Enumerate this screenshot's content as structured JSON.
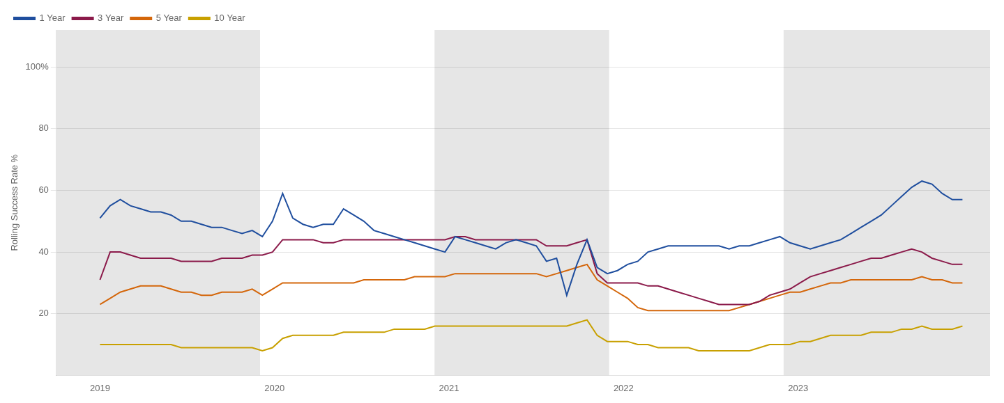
{
  "chart_data": {
    "type": "line",
    "y_label": "Rolling Success Rate %",
    "x": [
      2019.0,
      2019.05814,
      2019.116279,
      2019.174419,
      2019.232558,
      2019.290698,
      2019.348837,
      2019.406977,
      2019.465116,
      2019.523256,
      2019.581395,
      2019.639535,
      2019.697674,
      2019.755814,
      2019.813953,
      2019.872093,
      2019.930233,
      2019.988372,
      2020.046512,
      2020.104651,
      2020.162791,
      2020.22093,
      2020.27907,
      2020.337209,
      2020.395349,
      2020.453488,
      2020.511628,
      2020.569767,
      2020.627907,
      2020.686047,
      2020.744186,
      2020.802326,
      2020.860465,
      2020.918605,
      2020.976744,
      2021.034884,
      2021.093023,
      2021.151163,
      2021.209302,
      2021.267442,
      2021.325581,
      2021.383721,
      2021.44186,
      2021.5,
      2021.55814,
      2021.616279,
      2021.674419,
      2021.732558,
      2021.790698,
      2021.848837,
      2021.906977,
      2021.965116,
      2022.023256,
      2022.081395,
      2022.139535,
      2022.197674,
      2022.255814,
      2022.313953,
      2022.372093,
      2022.430233,
      2022.488372,
      2022.546512,
      2022.604651,
      2022.662791,
      2022.72093,
      2022.77907,
      2022.837209,
      2022.895349,
      2022.953488,
      2023.011628,
      2023.069767,
      2023.127907,
      2023.186047,
      2023.244186,
      2023.302326,
      2023.360465,
      2023.418605,
      2023.476744,
      2023.534884,
      2023.593023,
      2023.651163,
      2023.709302,
      2023.767442,
      2023.825581,
      2023.883721,
      2023.94186
    ],
    "series": [
      {
        "name": "1 Year",
        "color": "#1f4e9e",
        "values": [
          51,
          55,
          57,
          55,
          54,
          53,
          53,
          52,
          50,
          50,
          49,
          48,
          48,
          47,
          46,
          47,
          45,
          50,
          59,
          51,
          49,
          48,
          49,
          49,
          54,
          52,
          50,
          47,
          46,
          45,
          44,
          43,
          42,
          41,
          40,
          45,
          44,
          43,
          42,
          41,
          43,
          44,
          43,
          42,
          37,
          38,
          26,
          36,
          44,
          35,
          33,
          34,
          36,
          37,
          40,
          41,
          42,
          42,
          42,
          42,
          42,
          42,
          41,
          42,
          42,
          43,
          44,
          45,
          43,
          42,
          41,
          42,
          43,
          44,
          46,
          48,
          50,
          52,
          55,
          58,
          61,
          63,
          62,
          59,
          57,
          57
        ]
      },
      {
        "name": "3 Year",
        "color": "#8b1a4a",
        "values": [
          31,
          40,
          40,
          39,
          38,
          38,
          38,
          38,
          37,
          37,
          37,
          37,
          38,
          38,
          38,
          39,
          39,
          40,
          44,
          44,
          44,
          44,
          43,
          43,
          44,
          44,
          44,
          44,
          44,
          44,
          44,
          44,
          44,
          44,
          44,
          45,
          45,
          44,
          44,
          44,
          44,
          44,
          44,
          44,
          42,
          42,
          42,
          43,
          44,
          33,
          30,
          30,
          30,
          30,
          29,
          29,
          28,
          27,
          26,
          25,
          24,
          23,
          23,
          23,
          23,
          24,
          26,
          27,
          28,
          30,
          32,
          33,
          34,
          35,
          36,
          37,
          38,
          38,
          39,
          40,
          41,
          40,
          38,
          37,
          36,
          36
        ]
      },
      {
        "name": "5 Year",
        "color": "#d4660a",
        "values": [
          23,
          25,
          27,
          28,
          29,
          29,
          29,
          28,
          27,
          27,
          26,
          26,
          27,
          27,
          27,
          28,
          26,
          28,
          30,
          30,
          30,
          30,
          30,
          30,
          30,
          30,
          31,
          31,
          31,
          31,
          31,
          32,
          32,
          32,
          32,
          33,
          33,
          33,
          33,
          33,
          33,
          33,
          33,
          33,
          32,
          33,
          34,
          35,
          36,
          31,
          29,
          27,
          25,
          22,
          21,
          21,
          21,
          21,
          21,
          21,
          21,
          21,
          21,
          22,
          23,
          24,
          25,
          26,
          27,
          27,
          28,
          29,
          30,
          30,
          31,
          31,
          31,
          31,
          31,
          31,
          31,
          32,
          31,
          31,
          30,
          30
        ]
      },
      {
        "name": "10 Year",
        "color": "#c8a000",
        "values": [
          10,
          10,
          10,
          10,
          10,
          10,
          10,
          10,
          9,
          9,
          9,
          9,
          9,
          9,
          9,
          9,
          8,
          9,
          12,
          13,
          13,
          13,
          13,
          13,
          14,
          14,
          14,
          14,
          14,
          15,
          15,
          15,
          15,
          16,
          16,
          16,
          16,
          16,
          16,
          16,
          16,
          16,
          16,
          16,
          16,
          16,
          16,
          17,
          18,
          13,
          11,
          11,
          11,
          10,
          10,
          9,
          9,
          9,
          9,
          8,
          8,
          8,
          8,
          8,
          8,
          9,
          10,
          10,
          10,
          11,
          11,
          12,
          13,
          13,
          13,
          13,
          14,
          14,
          14,
          15,
          15,
          16,
          15,
          15,
          15,
          16
        ]
      }
    ],
    "xlim": [
      2018.75,
      2024.1
    ],
    "xticks": [
      2019,
      2020,
      2021,
      2022,
      2023
    ],
    "ylim": [
      0,
      112
    ],
    "yticks": [
      20,
      40,
      60,
      80,
      {
        "value": 100,
        "label": "100%"
      }
    ],
    "bands": [
      {
        "from": 2018.75,
        "to": 2019.917,
        "color": "#e6e6e6"
      },
      {
        "from": 2020.917,
        "to": 2021.917,
        "color": "#e6e6e6"
      },
      {
        "from": 2022.917,
        "to": 2024.1,
        "color": "#e6e6e6"
      }
    ],
    "grid": "y",
    "legend": "top-left"
  }
}
